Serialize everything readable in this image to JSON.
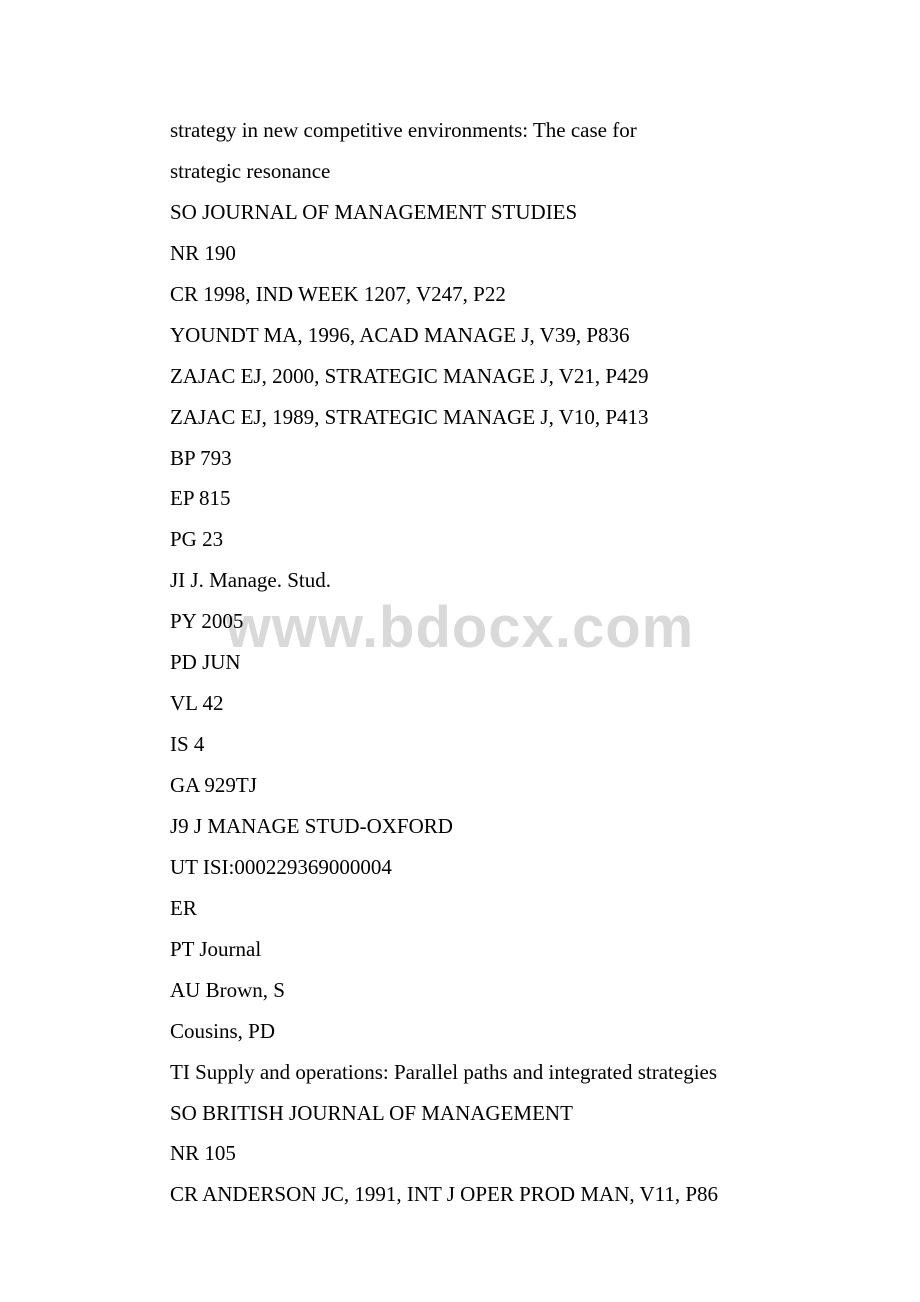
{
  "watermark": {
    "text": "www.bdocx.com",
    "color": "#d9d9d9",
    "fontsize": 58
  },
  "document": {
    "font_family": "Times New Roman",
    "font_size": 21,
    "line_height": 1.95,
    "text_color": "#000000",
    "background_color": "#ffffff",
    "lines": [
      "strategy in new competitive environments: The case for",
      "strategic resonance",
      "SO JOURNAL OF MANAGEMENT STUDIES",
      "NR 190",
      "CR 1998, IND WEEK 1207, V247, P22",
      "YOUNDT MA, 1996, ACAD MANAGE J, V39, P836",
      "ZAJAC EJ, 2000, STRATEGIC MANAGE J, V21, P429",
      "ZAJAC EJ, 1989, STRATEGIC MANAGE J, V10, P413",
      "BP 793",
      "EP 815",
      "PG 23",
      "JI J. Manage. Stud.",
      "PY 2005",
      "PD JUN",
      "VL 42",
      "IS 4",
      "GA 929TJ",
      "J9 J MANAGE STUD-OXFORD",
      "UT ISI:000229369000004",
      "ER",
      "PT Journal",
      "AU Brown, S",
      "Cousins, PD",
      "TI Supply and operations: Parallel paths and integrated strategies",
      "SO BRITISH JOURNAL OF MANAGEMENT",
      "NR 105",
      "CR ANDERSON JC, 1991, INT J OPER PROD MAN, V11, P86"
    ]
  }
}
